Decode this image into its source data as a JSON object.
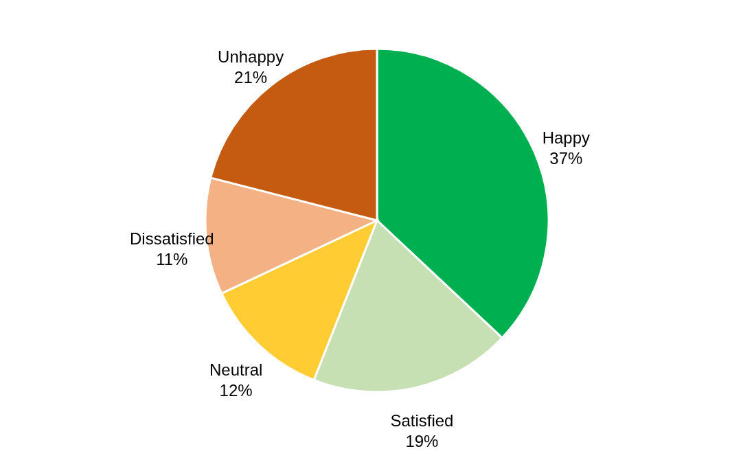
{
  "chart_data": {
    "type": "pie",
    "categories": [
      "Happy",
      "Satisfied",
      "Neutral",
      "Dissatisfied",
      "Unhappy"
    ],
    "values": [
      37,
      19,
      12,
      11,
      21
    ],
    "value_labels": [
      "37%",
      "19%",
      "12%",
      "11%",
      "21%"
    ],
    "colors": [
      "#00b050",
      "#c6e0b4",
      "#ffcd33",
      "#f4b183",
      "#c55a11"
    ]
  }
}
